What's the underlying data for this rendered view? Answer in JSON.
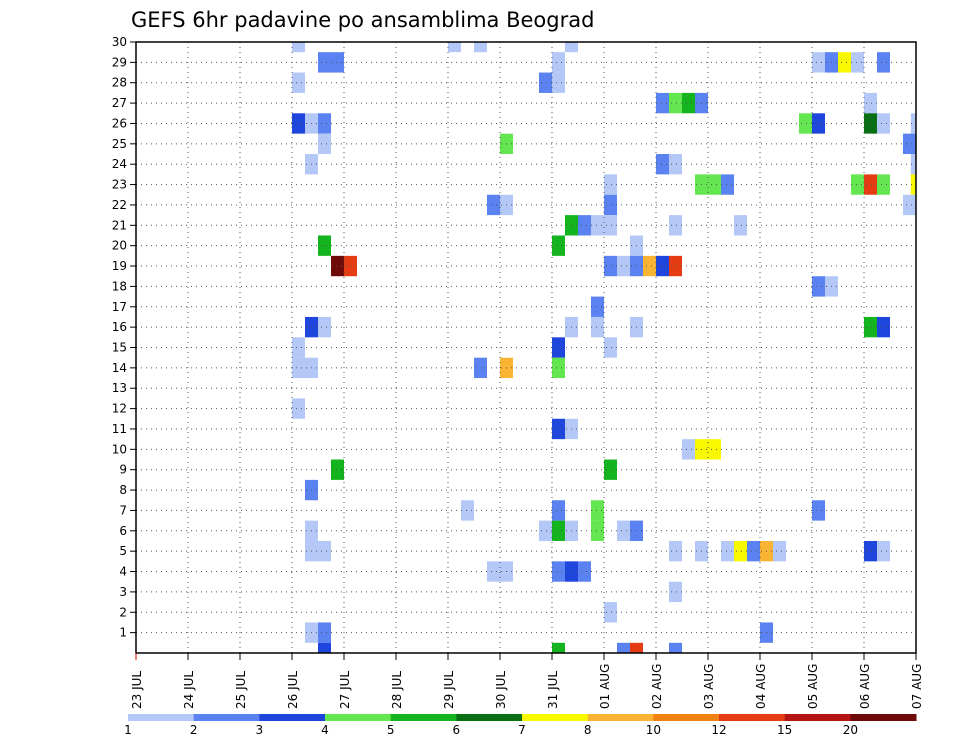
{
  "chart_data": {
    "type": "heatmap",
    "title": "GEFS 6hr padavine po ansamblima Beograd",
    "xlabel": "",
    "ylabel": "",
    "x_tick_labels": [
      "23 JUL",
      "24 JUL",
      "25 JUL",
      "26 JUL",
      "27 JUL",
      "28 JUL",
      "29 JUL",
      "30 JUL",
      "31 JUL",
      "01 AUG",
      "02 AUG",
      "03 AUG",
      "04 AUG",
      "05 AUG",
      "06 AUG",
      "07 AUG"
    ],
    "y_tick_labels": [
      "1",
      "2",
      "3",
      "4",
      "5",
      "6",
      "7",
      "8",
      "9",
      "10",
      "11",
      "12",
      "13",
      "14",
      "15",
      "16",
      "17",
      "18",
      "19",
      "20",
      "21",
      "22",
      "23",
      "24",
      "25",
      "26",
      "27",
      "28",
      "29",
      "30"
    ],
    "x_range_days": [
      0,
      15
    ],
    "y_range": [
      0,
      30
    ],
    "grid": true,
    "colorbar": {
      "tick_labels": [
        "1",
        "2",
        "3",
        "4",
        "5",
        "6",
        "7",
        "8",
        "10",
        "12",
        "15",
        "20"
      ],
      "colors": [
        "#b4c8f8",
        "#5a82f0",
        "#1e46dc",
        "#64e650",
        "#14b41e",
        "#0a6e14",
        "#f8f800",
        "#f8b432",
        "#f08214",
        "#e63c14",
        "#b41414",
        "#6e0a0a"
      ]
    },
    "cell_width_days": 0.25,
    "cells": [
      {
        "t": 3.0,
        "m": 30,
        "c": 0
      },
      {
        "t": 6.0,
        "m": 30,
        "c": 0
      },
      {
        "t": 6.5,
        "m": 30,
        "c": 0
      },
      {
        "t": 8.25,
        "m": 30,
        "c": 0
      },
      {
        "t": 3.5,
        "m": 29,
        "c": 1
      },
      {
        "t": 3.75,
        "m": 29,
        "c": 1
      },
      {
        "t": 8.0,
        "m": 29,
        "c": 0
      },
      {
        "t": 13.0,
        "m": 29,
        "c": 0
      },
      {
        "t": 13.25,
        "m": 29,
        "c": 1
      },
      {
        "t": 13.5,
        "m": 29,
        "c": 6
      },
      {
        "t": 13.75,
        "m": 29,
        "c": 0
      },
      {
        "t": 14.25,
        "m": 29,
        "c": 1
      },
      {
        "t": 3.0,
        "m": 28,
        "c": 0
      },
      {
        "t": 7.75,
        "m": 28,
        "c": 1
      },
      {
        "t": 8.0,
        "m": 28,
        "c": 0
      },
      {
        "t": 10.0,
        "m": 27,
        "c": 1
      },
      {
        "t": 10.25,
        "m": 27,
        "c": 3
      },
      {
        "t": 10.5,
        "m": 27,
        "c": 4
      },
      {
        "t": 10.75,
        "m": 27,
        "c": 1
      },
      {
        "t": 14.0,
        "m": 27,
        "c": 0
      },
      {
        "t": 3.0,
        "m": 26,
        "c": 2
      },
      {
        "t": 3.25,
        "m": 26,
        "c": 0
      },
      {
        "t": 3.5,
        "m": 26,
        "c": 1
      },
      {
        "t": 12.75,
        "m": 26,
        "c": 3
      },
      {
        "t": 13.0,
        "m": 26,
        "c": 2
      },
      {
        "t": 14.0,
        "m": 26,
        "c": 5
      },
      {
        "t": 14.25,
        "m": 26,
        "c": 0
      },
      {
        "t": 14.9,
        "m": 26,
        "c": 0
      },
      {
        "t": 3.5,
        "m": 25,
        "c": 0
      },
      {
        "t": 7.0,
        "m": 25,
        "c": 3
      },
      {
        "t": 14.75,
        "m": 25,
        "c": 1
      },
      {
        "t": 3.25,
        "m": 24,
        "c": 0
      },
      {
        "t": 10.0,
        "m": 24,
        "c": 1
      },
      {
        "t": 10.25,
        "m": 24,
        "c": 0
      },
      {
        "t": 14.9,
        "m": 24,
        "c": 0
      },
      {
        "t": 9.0,
        "m": 23,
        "c": 0
      },
      {
        "t": 10.75,
        "m": 23,
        "c": 3
      },
      {
        "t": 11.0,
        "m": 23,
        "c": 3
      },
      {
        "t": 11.25,
        "m": 23,
        "c": 1
      },
      {
        "t": 13.75,
        "m": 23,
        "c": 3
      },
      {
        "t": 14.0,
        "m": 23,
        "c": 9
      },
      {
        "t": 14.25,
        "m": 23,
        "c": 3
      },
      {
        "t": 14.9,
        "m": 23,
        "c": 6
      },
      {
        "t": 6.75,
        "m": 22,
        "c": 1
      },
      {
        "t": 7.0,
        "m": 22,
        "c": 0
      },
      {
        "t": 9.0,
        "m": 22,
        "c": 1
      },
      {
        "t": 14.75,
        "m": 22,
        "c": 0
      },
      {
        "t": 8.25,
        "m": 21,
        "c": 4
      },
      {
        "t": 8.5,
        "m": 21,
        "c": 1
      },
      {
        "t": 8.75,
        "m": 21,
        "c": 0
      },
      {
        "t": 9.0,
        "m": 21,
        "c": 0
      },
      {
        "t": 10.25,
        "m": 21,
        "c": 0
      },
      {
        "t": 11.5,
        "m": 21,
        "c": 0
      },
      {
        "t": 3.5,
        "m": 20,
        "c": 4
      },
      {
        "t": 8.0,
        "m": 20,
        "c": 4
      },
      {
        "t": 9.5,
        "m": 20,
        "c": 0
      },
      {
        "t": 3.75,
        "m": 19,
        "c": 11
      },
      {
        "t": 4.0,
        "m": 19,
        "c": 9
      },
      {
        "t": 9.0,
        "m": 19,
        "c": 1
      },
      {
        "t": 9.25,
        "m": 19,
        "c": 0
      },
      {
        "t": 9.5,
        "m": 19,
        "c": 1
      },
      {
        "t": 9.75,
        "m": 19,
        "c": 7
      },
      {
        "t": 10.0,
        "m": 19,
        "c": 2
      },
      {
        "t": 10.25,
        "m": 19,
        "c": 9
      },
      {
        "t": 13.0,
        "m": 18,
        "c": 1
      },
      {
        "t": 13.25,
        "m": 18,
        "c": 0
      },
      {
        "t": 8.75,
        "m": 17,
        "c": 1
      },
      {
        "t": 3.25,
        "m": 16,
        "c": 2
      },
      {
        "t": 3.5,
        "m": 16,
        "c": 0
      },
      {
        "t": 8.25,
        "m": 16,
        "c": 0
      },
      {
        "t": 8.75,
        "m": 16,
        "c": 0
      },
      {
        "t": 9.5,
        "m": 16,
        "c": 0
      },
      {
        "t": 14.0,
        "m": 16,
        "c": 4
      },
      {
        "t": 14.25,
        "m": 16,
        "c": 2
      },
      {
        "t": 3.0,
        "m": 15,
        "c": 0
      },
      {
        "t": 8.0,
        "m": 15,
        "c": 2
      },
      {
        "t": 9.0,
        "m": 15,
        "c": 0
      },
      {
        "t": 3.0,
        "m": 14,
        "c": 0
      },
      {
        "t": 3.25,
        "m": 14,
        "c": 0
      },
      {
        "t": 6.5,
        "m": 14,
        "c": 1
      },
      {
        "t": 7.0,
        "m": 14,
        "c": 7
      },
      {
        "t": 8.0,
        "m": 14,
        "c": 3
      },
      {
        "t": 3.0,
        "m": 12,
        "c": 0
      },
      {
        "t": 8.0,
        "m": 11,
        "c": 2
      },
      {
        "t": 8.25,
        "m": 11,
        "c": 0
      },
      {
        "t": 10.5,
        "m": 10,
        "c": 0
      },
      {
        "t": 10.75,
        "m": 10,
        "c": 6
      },
      {
        "t": 11.0,
        "m": 10,
        "c": 6
      },
      {
        "t": 3.75,
        "m": 9,
        "c": 4
      },
      {
        "t": 9.0,
        "m": 9,
        "c": 4
      },
      {
        "t": 3.25,
        "m": 8,
        "c": 1
      },
      {
        "t": 6.25,
        "m": 7,
        "c": 0
      },
      {
        "t": 8.0,
        "m": 7,
        "c": 1
      },
      {
        "t": 8.75,
        "m": 7,
        "c": 3
      },
      {
        "t": 13.0,
        "m": 7,
        "c": 1
      },
      {
        "t": 3.25,
        "m": 6,
        "c": 0
      },
      {
        "t": 7.75,
        "m": 6,
        "c": 0
      },
      {
        "t": 8.0,
        "m": 6,
        "c": 4
      },
      {
        "t": 8.25,
        "m": 6,
        "c": 0
      },
      {
        "t": 8.75,
        "m": 6,
        "c": 3
      },
      {
        "t": 9.25,
        "m": 6,
        "c": 0
      },
      {
        "t": 9.5,
        "m": 6,
        "c": 1
      },
      {
        "t": 3.25,
        "m": 5,
        "c": 0
      },
      {
        "t": 3.5,
        "m": 5,
        "c": 0
      },
      {
        "t": 10.25,
        "m": 5,
        "c": 0
      },
      {
        "t": 10.75,
        "m": 5,
        "c": 0
      },
      {
        "t": 11.25,
        "m": 5,
        "c": 0
      },
      {
        "t": 11.5,
        "m": 5,
        "c": 6
      },
      {
        "t": 11.75,
        "m": 5,
        "c": 1
      },
      {
        "t": 12.0,
        "m": 5,
        "c": 7
      },
      {
        "t": 12.25,
        "m": 5,
        "c": 0
      },
      {
        "t": 14.0,
        "m": 5,
        "c": 2
      },
      {
        "t": 14.25,
        "m": 5,
        "c": 0
      },
      {
        "t": 6.75,
        "m": 4,
        "c": 0
      },
      {
        "t": 7.0,
        "m": 4,
        "c": 0
      },
      {
        "t": 8.0,
        "m": 4,
        "c": 1
      },
      {
        "t": 8.25,
        "m": 4,
        "c": 2
      },
      {
        "t": 8.5,
        "m": 4,
        "c": 1
      },
      {
        "t": 10.25,
        "m": 3,
        "c": 0
      },
      {
        "t": 9.0,
        "m": 2,
        "c": 0
      },
      {
        "t": 3.25,
        "m": 1,
        "c": 0
      },
      {
        "t": 3.5,
        "m": 1,
        "c": 1
      },
      {
        "t": 12.0,
        "m": 1,
        "c": 1
      },
      {
        "t": 3.5,
        "m": 0,
        "c": 2
      },
      {
        "t": 8.0,
        "m": 0,
        "c": 4
      },
      {
        "t": 9.25,
        "m": 0,
        "c": 1
      },
      {
        "t": 9.5,
        "m": 0,
        "c": 9
      },
      {
        "t": 10.25,
        "m": 0,
        "c": 1
      }
    ]
  }
}
